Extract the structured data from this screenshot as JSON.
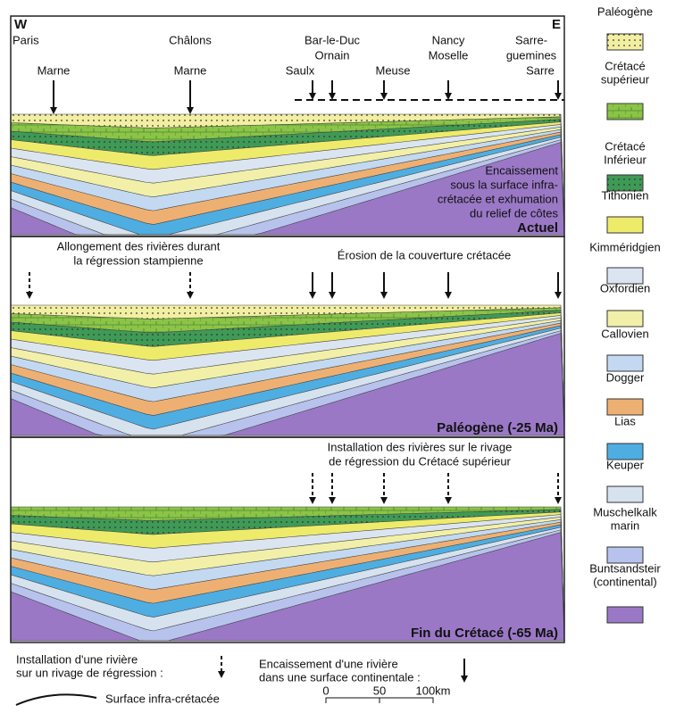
{
  "corner_left": "W",
  "corner_right": "E",
  "panels": [
    {
      "places": [
        "Paris",
        "Châlons",
        "Bar-le-Duc",
        "Ornain",
        "Nancy",
        "Moselle",
        "Sarre-",
        "guemines",
        "Sarre"
      ],
      "rivers": [
        "Marne",
        "Marne",
        "Saulx",
        "Meuse"
      ],
      "note": [
        "Encaissement",
        "sous la surface infra-",
        "crétacée et exhumation",
        "du relief de côtes"
      ],
      "title": "Actuel"
    },
    {
      "notes": [
        "Allongement des rivières durant",
        "la régression stampienne",
        "Érosion de la couverture crétacée"
      ],
      "title": "Paléogène (-25 Ma)"
    },
    {
      "notes": [
        "Installation des rivières sur le rivage",
        "de régression du Crétacé supérieur"
      ],
      "title": "Fin du Crétacé (-65 Ma)"
    }
  ],
  "legend": [
    {
      "label": [
        "Paléogène"
      ],
      "color": "#f3efa2"
    },
    {
      "label": [
        "Crétacé",
        "supérieur"
      ],
      "color": "#8cc447"
    },
    {
      "label": [
        "Crétacé",
        "Inférieur"
      ],
      "color": "#3e9a55"
    },
    {
      "label": [
        "Tithonien"
      ],
      "color": "#efeb6a"
    },
    {
      "label": [
        "Kimméridgien"
      ],
      "color": "#dbe5f1"
    },
    {
      "label": [
        "Oxfordien"
      ],
      "color": "#f2f0a8"
    },
    {
      "label": [
        "Callovien"
      ],
      "color": "#c3d9f1"
    },
    {
      "label": [
        "Dogger"
      ],
      "color": "#eeb072"
    },
    {
      "label": [
        "Lias"
      ],
      "color": "#4eaee2"
    },
    {
      "label": [
        "Keuper"
      ],
      "color": "#d6e2ee"
    },
    {
      "label": [
        "Muschelkalk",
        "marin"
      ],
      "color": "#b7c3ec"
    },
    {
      "label": [
        "Buntsandsteir",
        "(continental)"
      ],
      "color": "#9a78c6"
    }
  ],
  "key": {
    "installation": [
      "Installation d'une rivière",
      "sur un rivage de régression :"
    ],
    "encaissement": [
      "Encaissement d'une rivière",
      "dans une surface continentale :"
    ],
    "surface": "Surface infra-crétacée",
    "scale": [
      "0",
      "50",
      "100km"
    ]
  }
}
